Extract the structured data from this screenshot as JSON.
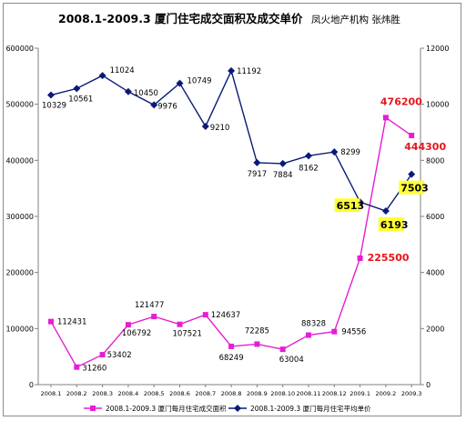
{
  "title": "2008.1-2009.3  厦门住宅成交面积及成交单价",
  "subtitle": "凤火地产机构  张炜胜",
  "chart_data": {
    "type": "line",
    "title": "2008.1-2009.3  厦门住宅成交面积及成交单价",
    "subtitle": "凤火地产机构  张炜胜",
    "categories": [
      "2008.1",
      "2008.2",
      "2008.3",
      "2008.4",
      "2008.5",
      "2008.6",
      "2008.7",
      "2008.8",
      "2008.9",
      "2008.10",
      "2008.11",
      "2008.12",
      "2009.1",
      "2009.2",
      "2009.3"
    ],
    "y_left": {
      "min": 0,
      "max": 600000,
      "ticks": [
        "0",
        "100000",
        "200000",
        "300000",
        "400000",
        "500000",
        "600000"
      ]
    },
    "y_right": {
      "min": 0,
      "max": 12000,
      "ticks": [
        "0",
        "2000",
        "4000",
        "6000",
        "8000",
        "10000",
        "12000"
      ]
    },
    "grid": false,
    "legend_position": "bottom",
    "series": [
      {
        "name": "2008.1-2009.3  厦门每月住宅成交面积",
        "axis": "left",
        "color": "#e61ed2",
        "marker": "square",
        "values": [
          112431,
          31260,
          53402,
          106792,
          121477,
          107521,
          124637,
          68249,
          72285,
          63004,
          88328,
          94556,
          225500,
          476200,
          444300
        ],
        "labels": [
          "112431",
          "31260",
          "53402",
          "106792",
          "121477",
          "107521",
          "124637",
          "68249",
          "72285",
          "63004",
          "88328",
          "94556",
          "225500",
          "476200",
          "444300"
        ]
      },
      {
        "name": "2008.1-2009.3  厦门每月住宅平均单价",
        "axis": "right",
        "color": "#0a1a78",
        "marker": "diamond",
        "values": [
          10329,
          10561,
          11024,
          10450,
          9976,
          10749,
          9210,
          11192,
          7917,
          7884,
          8162,
          8299,
          6513,
          6193,
          7503
        ],
        "labels": [
          "10329",
          "10561",
          "11024",
          "10450",
          "9976",
          "10749",
          "9210",
          "11192",
          "7917",
          "7884",
          "8162",
          "8299",
          "6513",
          "6193",
          "7503"
        ]
      }
    ],
    "highlight_color": "#ffff33",
    "emphasis_color": "#e8141a"
  }
}
